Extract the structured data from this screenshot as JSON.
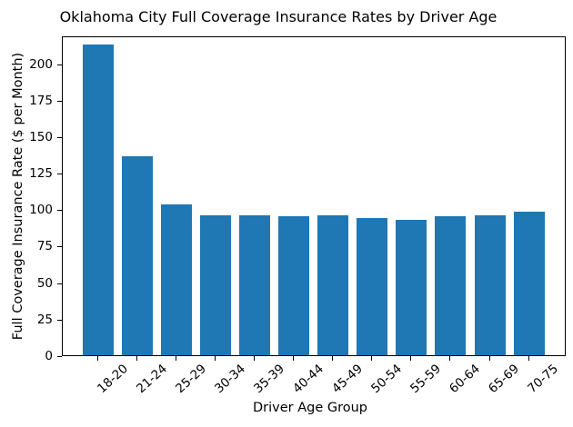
{
  "chart_data": {
    "type": "bar",
    "title": "Oklahoma City Full Coverage Insurance Rates by Driver Age",
    "xlabel": "Driver Age Group",
    "ylabel": "Full Coverage Insurance Rate ($ per Month)",
    "categories": [
      "18-20",
      "21-24",
      "25-29",
      "30-34",
      "35-39",
      "40-44",
      "45-49",
      "50-54",
      "55-59",
      "60-64",
      "65-69",
      "70-75"
    ],
    "values": [
      213,
      136,
      103,
      96,
      96,
      95,
      96,
      94,
      93,
      95,
      96,
      98
    ],
    "yticks": [
      0,
      25,
      50,
      75,
      100,
      125,
      150,
      175,
      200
    ],
    "ylim": [
      0,
      219
    ],
    "bar_color": "#1f77b4",
    "background_color": "#ffffff",
    "grid": false,
    "legend": null
  }
}
